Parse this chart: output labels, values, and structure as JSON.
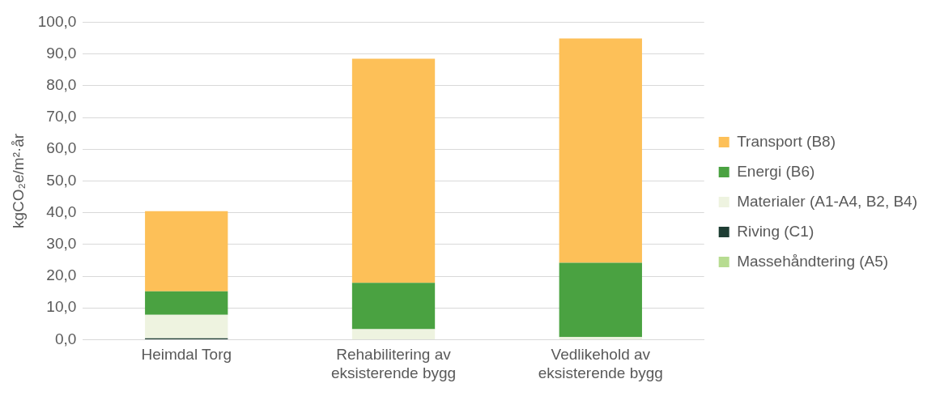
{
  "chart_data": {
    "type": "bar",
    "stacked": true,
    "ylabel": "kgCO₂e/m²·år",
    "categories": [
      "Heimdal Torg",
      "Rehabilitering av eksisterende bygg",
      "Vedlikehold av eksisterende bygg"
    ],
    "series": [
      {
        "name": "Massehåndtering (A5)",
        "color": "#b7dc91",
        "values": [
          null,
          0,
          0
        ]
      },
      {
        "name": "Riving (C1)",
        "color": "#1e3d33",
        "values": [
          0.4,
          0,
          0
        ]
      },
      {
        "name": "Materialer (A1-A4, B2, B4)",
        "color": "#eef3e0",
        "values": [
          7.4,
          3.3,
          0.8
        ]
      },
      {
        "name": "Energi (B6)",
        "color": "#4aa241",
        "values": [
          7.4,
          14.6,
          23.4
        ]
      },
      {
        "name": "Transport (B8)",
        "color": "#fdc058",
        "values": [
          25.3,
          70.6,
          70.7
        ]
      }
    ],
    "ylim": [
      0,
      100
    ],
    "yticks": [
      {
        "value": 0,
        "label": "0,0"
      },
      {
        "value": 10,
        "label": "10,0"
      },
      {
        "value": 20,
        "label": "20,0"
      },
      {
        "value": 30,
        "label": "30,0"
      },
      {
        "value": 40,
        "label": "40,0"
      },
      {
        "value": 50,
        "label": "50,0"
      },
      {
        "value": 60,
        "label": "60,0"
      },
      {
        "value": 70,
        "label": "70,0"
      },
      {
        "value": 80,
        "label": "80,0"
      },
      {
        "value": 90,
        "label": "90,0"
      },
      {
        "value": 100,
        "label": "100,0"
      }
    ],
    "grid": "y",
    "legend": "right"
  }
}
